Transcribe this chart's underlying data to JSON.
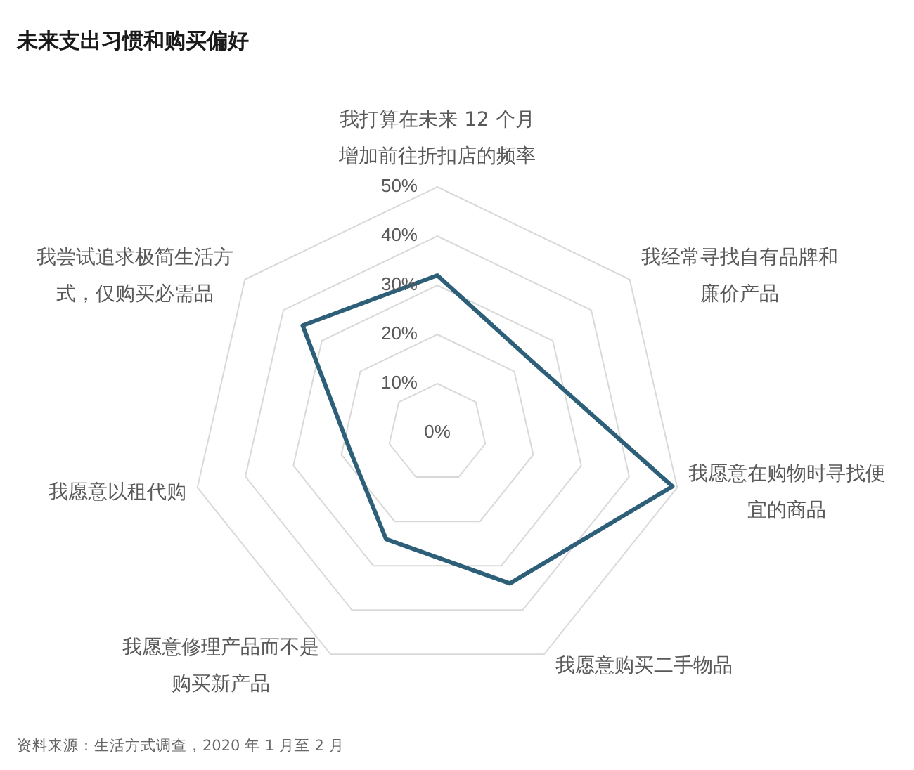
{
  "chart_data": {
    "type": "radar",
    "title": "未来支出习惯和购买偏好",
    "categories": [
      "我打算在未来 12 个月增加前往折扣店的频率",
      "我经常寻找自有品牌和廉价产品",
      "我愿意在购物时寻找便宜的商品",
      "我愿意购买二手物品",
      "我愿意修理产品而不是购买新产品",
      "我愿意以租代购",
      "我尝试追求极简生活方式，仅购买必需品"
    ],
    "series": [
      {
        "color": "#2e5f79",
        "values": [
          32,
          24,
          49,
          34,
          24,
          18,
          35
        ]
      }
    ],
    "ylim": [
      0,
      50
    ],
    "yticks": [
      {
        "value": 0,
        "label": "0%"
      },
      {
        "value": 10,
        "label": "10%"
      },
      {
        "value": 20,
        "label": "20%"
      },
      {
        "value": 30,
        "label": "30%"
      },
      {
        "value": 40,
        "label": "40%"
      },
      {
        "value": 50,
        "label": "50%"
      }
    ],
    "grid": true,
    "marker": "none",
    "line_style": "solid",
    "annotations": [
      "资料来源：生活方式调查，2020 年 1 月至 2 月"
    ]
  }
}
